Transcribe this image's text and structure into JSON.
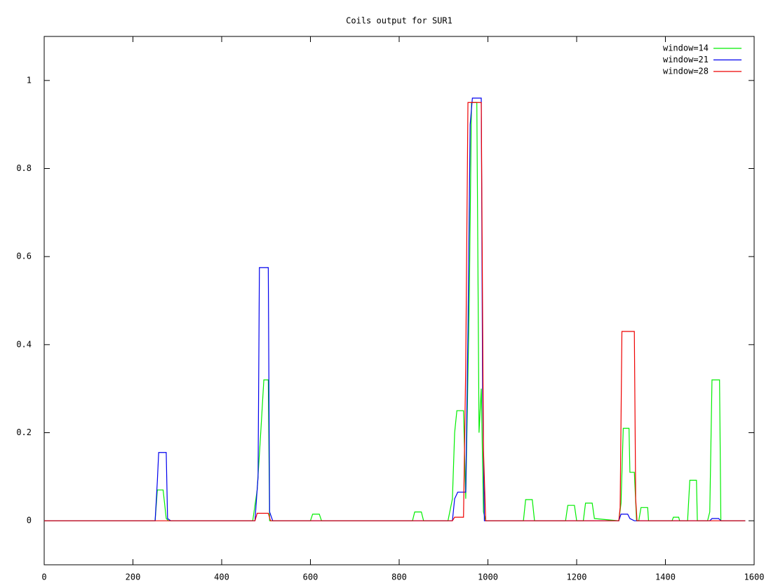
{
  "chart_data": {
    "type": "line",
    "title": "Coils output for SUR1",
    "xlim": [
      0,
      1600
    ],
    "xticks": [
      0,
      200,
      400,
      600,
      800,
      1000,
      1200,
      1400,
      1600
    ],
    "ylim": [
      -0.1,
      1.1
    ],
    "yticks": [
      0,
      0.2,
      0.4,
      0.6,
      0.8,
      1
    ],
    "legend": "top-right",
    "series": [
      {
        "name": "window=14",
        "color": "#00ee00",
        "x": [
          0,
          250,
          255,
          268,
          275,
          280,
          470,
          480,
          488,
          495,
          505,
          508,
          600,
          605,
          620,
          625,
          830,
          835,
          850,
          855,
          910,
          920,
          925,
          930,
          945,
          950,
          958,
          963,
          975,
          980,
          985,
          990,
          995,
          1080,
          1085,
          1100,
          1105,
          1175,
          1180,
          1195,
          1200,
          1215,
          1220,
          1235,
          1240,
          1295,
          1300,
          1305,
          1318,
          1320,
          1330,
          1335,
          1340,
          1345,
          1360,
          1362,
          1415,
          1418,
          1430,
          1432,
          1450,
          1455,
          1470,
          1472,
          1495,
          1500,
          1505,
          1522,
          1525,
          1580
        ],
        "values": [
          0,
          0,
          0.07,
          0.07,
          0.005,
          0,
          0,
          0.07,
          0.2,
          0.32,
          0.32,
          0,
          0,
          0.015,
          0.015,
          0,
          0,
          0.02,
          0.02,
          0,
          0,
          0.05,
          0.2,
          0.25,
          0.25,
          0.05,
          0.5,
          0.95,
          0.95,
          0.2,
          0.3,
          0.02,
          0,
          0,
          0.048,
          0.048,
          0,
          0,
          0.035,
          0.035,
          0,
          0,
          0.04,
          0.04,
          0.005,
          0,
          0.04,
          0.21,
          0.21,
          0.11,
          0.11,
          0,
          0,
          0.03,
          0.03,
          0,
          0,
          0.008,
          0.008,
          0,
          0,
          0.092,
          0.092,
          0,
          0,
          0.02,
          0.32,
          0.32,
          0,
          0
        ]
      },
      {
        "name": "window=21",
        "color": "#0000ee",
        "x": [
          0,
          250,
          255,
          258,
          275,
          278,
          285,
          475,
          482,
          485,
          505,
          508,
          515,
          920,
          925,
          932,
          950,
          955,
          960,
          965,
          985,
          988,
          992,
          1295,
          1300,
          1315,
          1320,
          1330,
          1500,
          1505,
          1520,
          1525,
          1580
        ],
        "values": [
          0,
          0,
          0.09,
          0.155,
          0.155,
          0.005,
          0,
          0,
          0.1,
          0.575,
          0.575,
          0.02,
          0,
          0,
          0.05,
          0.065,
          0.065,
          0.43,
          0.9,
          0.96,
          0.96,
          0.3,
          0,
          0,
          0.015,
          0.015,
          0.005,
          0,
          0,
          0.005,
          0.005,
          0,
          0
        ]
      },
      {
        "name": "window=28",
        "color": "#ee0000",
        "x": [
          0,
          475,
          480,
          505,
          510,
          920,
          925,
          945,
          950,
          955,
          985,
          990,
          995,
          1295,
          1298,
          1302,
          1330,
          1333,
          1336,
          1580
        ],
        "values": [
          0,
          0,
          0.017,
          0.017,
          0,
          0,
          0.008,
          0.008,
          0.35,
          0.95,
          0.95,
          0.16,
          0,
          0,
          0.03,
          0.43,
          0.43,
          0.05,
          0,
          0
        ]
      }
    ]
  }
}
